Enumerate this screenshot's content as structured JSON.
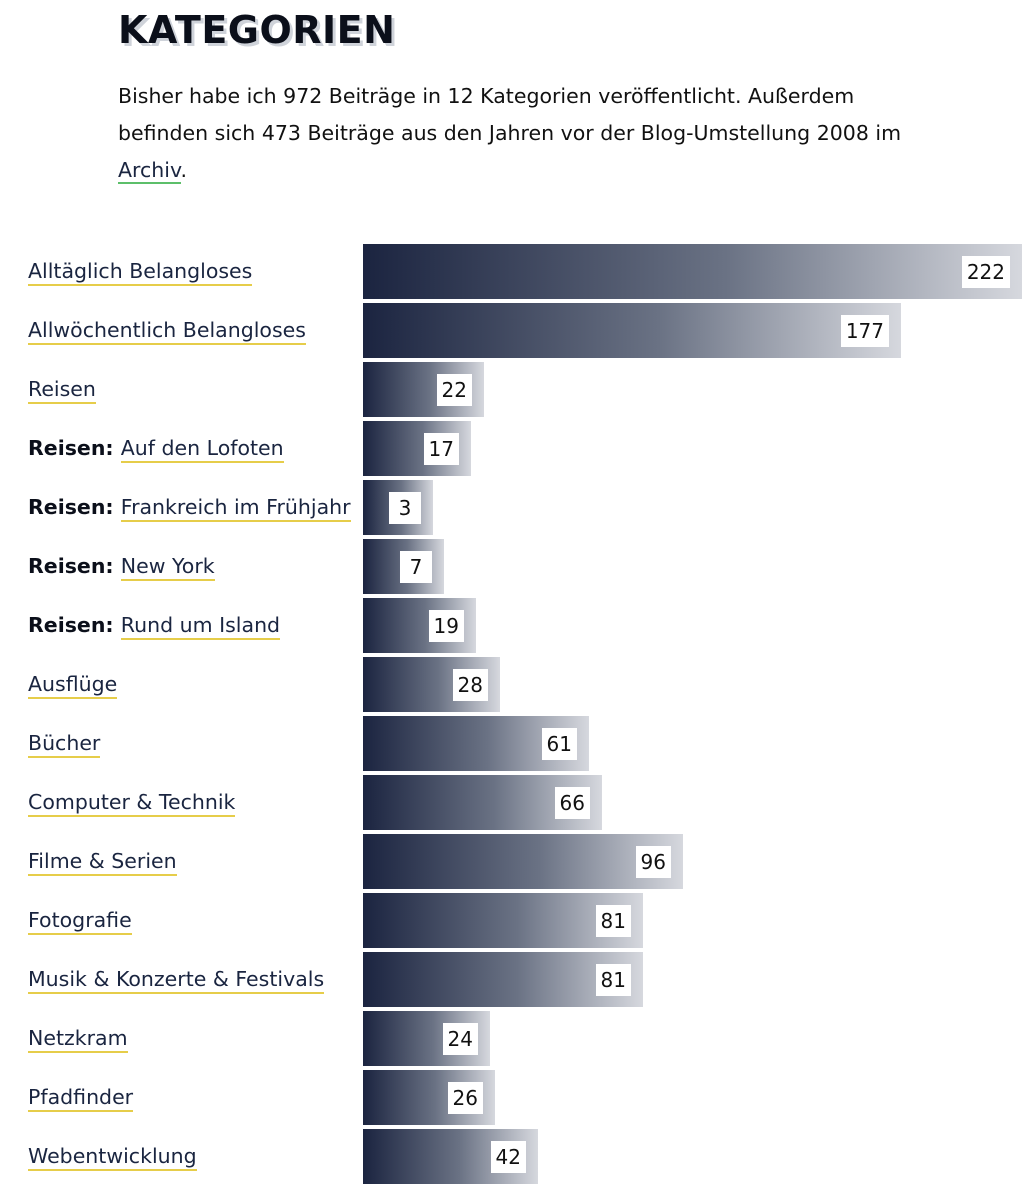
{
  "heading": "KATEGORIEN",
  "intro": {
    "text_before": "Bisher habe ich 972 Beiträge in 12 Kategorien veröffentlicht. Außerdem befinden sich 473 Beiträge aus den Jahren vor der Blog-Umstellung 2008 im ",
    "archive_link": "Archiv",
    "text_after": "."
  },
  "colors": {
    "bar_start": "#1b2440",
    "bar_end": "#d6d8de",
    "link_underline": "#e6cd4a",
    "archive_underline": "#5cbf6a",
    "link_text": "#1a2540"
  },
  "chart_data": {
    "type": "bar",
    "orientation": "horizontal",
    "categories": [
      {
        "prefix": "",
        "name": "Alltäglich Belangloses"
      },
      {
        "prefix": "",
        "name": "Allwöchentlich Belangloses"
      },
      {
        "prefix": "",
        "name": "Reisen"
      },
      {
        "prefix": "Reisen:",
        "name": "Auf den Lofoten"
      },
      {
        "prefix": "Reisen:",
        "name": "Frankreich im Frühjahr"
      },
      {
        "prefix": "Reisen:",
        "name": "New York"
      },
      {
        "prefix": "Reisen:",
        "name": "Rund um Island"
      },
      {
        "prefix": "",
        "name": "Ausflüge"
      },
      {
        "prefix": "",
        "name": "Bücher"
      },
      {
        "prefix": "",
        "name": "Computer & Technik"
      },
      {
        "prefix": "",
        "name": "Filme & Serien"
      },
      {
        "prefix": "",
        "name": "Fotografie"
      },
      {
        "prefix": "",
        "name": "Musik & Konzerte & Festivals"
      },
      {
        "prefix": "",
        "name": "Netzkram"
      },
      {
        "prefix": "",
        "name": "Pfadfinder"
      },
      {
        "prefix": "",
        "name": "Webentwicklung"
      }
    ],
    "values": [
      222,
      177,
      22,
      17,
      3,
      7,
      19,
      28,
      61,
      66,
      96,
      81,
      81,
      24,
      26,
      42
    ],
    "xlim": [
      0,
      222
    ],
    "data_labels": true,
    "grid": false,
    "legend": "none"
  }
}
